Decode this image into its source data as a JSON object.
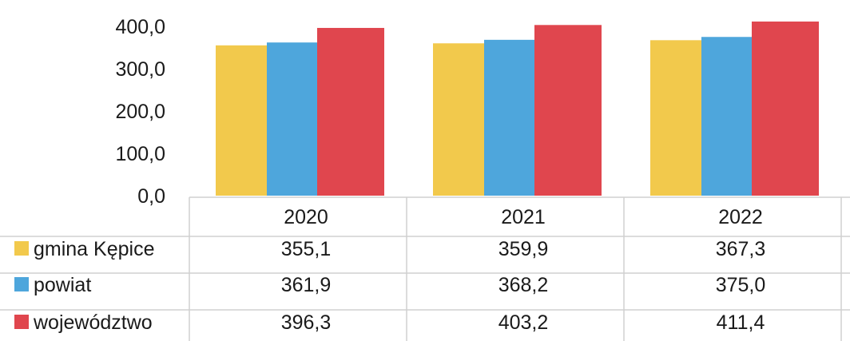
{
  "chart_data": {
    "type": "bar",
    "categories": [
      "2020",
      "2021",
      "2022"
    ],
    "ylim": [
      0,
      400
    ],
    "yticks": [
      "0,0",
      "100,0",
      "200,0",
      "300,0",
      "400,0"
    ],
    "ytick_values": [
      0,
      100,
      200,
      300,
      400
    ],
    "grid": false,
    "legend": "data-table",
    "title": "",
    "xlabel": "",
    "ylabel": "",
    "series": [
      {
        "name": "gmina Kępice",
        "color": "#F2C94C",
        "values": [
          355.1,
          359.9,
          367.3
        ],
        "labels": [
          "355,1",
          "359,9",
          "367,3"
        ]
      },
      {
        "name": "powiat",
        "color": "#4EA6DC",
        "values": [
          361.9,
          368.2,
          375.0
        ],
        "labels": [
          "361,9",
          "368,2",
          "375,0"
        ]
      },
      {
        "name": "województwo",
        "color": "#E0464E",
        "values": [
          396.3,
          403.2,
          411.4
        ],
        "labels": [
          "396,3",
          "403,2",
          "411,4"
        ]
      }
    ]
  }
}
